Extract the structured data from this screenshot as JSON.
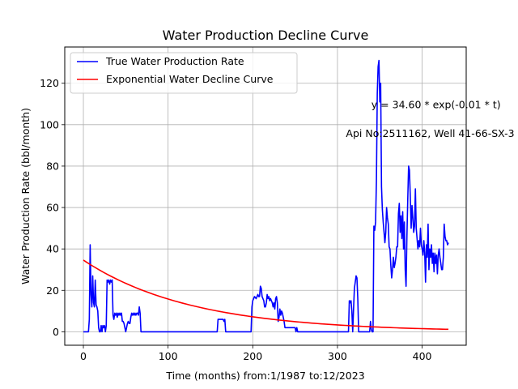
{
  "chart_data": {
    "type": "line",
    "title": "Water Production Decline Curve",
    "xlabel": "Time (months) from:1/1987 to:12/2023",
    "ylabel": "Water Production Rate (bbl/month)",
    "xlim": [
      -22,
      452
    ],
    "ylim": [
      -6.5,
      137.5
    ],
    "xticks": [
      0,
      100,
      200,
      300,
      400
    ],
    "yticks": [
      0,
      20,
      40,
      60,
      80,
      100,
      120
    ],
    "grid": true,
    "legend_position": "top-left",
    "annotations": [
      {
        "text": "y = 34.60 * exp(-0.01 * t)",
        "x": 340,
        "y": 108
      },
      {
        "text": "Api No:2511162, Well 41-66-SX-3",
        "x": 310,
        "y": 94
      }
    ],
    "series": [
      {
        "name": "True Water Production Rate",
        "color": "#0000ff",
        "kind": "polyline",
        "points": [
          [
            0,
            0
          ],
          [
            6,
            0
          ],
          [
            7,
            6
          ],
          [
            8,
            42
          ],
          [
            9,
            18
          ],
          [
            10,
            12
          ],
          [
            11,
            27
          ],
          [
            12,
            14
          ],
          [
            13,
            12
          ],
          [
            14,
            25
          ],
          [
            15,
            13
          ],
          [
            16,
            12
          ],
          [
            17,
            10
          ],
          [
            18,
            2
          ],
          [
            19,
            0
          ],
          [
            20,
            0
          ],
          [
            21,
            3
          ],
          [
            22,
            0
          ],
          [
            23,
            3
          ],
          [
            24,
            2
          ],
          [
            25,
            3
          ],
          [
            26,
            0
          ],
          [
            27,
            3
          ],
          [
            28,
            25
          ],
          [
            29,
            24
          ],
          [
            30,
            25
          ],
          [
            31,
            23
          ],
          [
            32,
            25
          ],
          [
            33,
            24
          ],
          [
            34,
            25
          ],
          [
            35,
            8
          ],
          [
            36,
            6
          ],
          [
            37,
            9
          ],
          [
            38,
            8
          ],
          [
            39,
            9
          ],
          [
            40,
            7
          ],
          [
            41,
            9
          ],
          [
            42,
            8
          ],
          [
            43,
            9
          ],
          [
            44,
            8
          ],
          [
            45,
            9
          ],
          [
            46,
            5
          ],
          [
            47,
            5
          ],
          [
            48,
            4
          ],
          [
            49,
            2
          ],
          [
            50,
            0
          ],
          [
            51,
            2
          ],
          [
            52,
            4
          ],
          [
            53,
            5
          ],
          [
            54,
            4
          ],
          [
            55,
            4
          ],
          [
            56,
            7
          ],
          [
            57,
            9
          ],
          [
            58,
            8
          ],
          [
            59,
            9
          ],
          [
            60,
            8
          ],
          [
            61,
            9
          ],
          [
            62,
            8
          ],
          [
            63,
            9
          ],
          [
            64,
            9
          ],
          [
            65,
            8
          ],
          [
            66,
            12
          ],
          [
            67,
            9
          ],
          [
            68,
            0
          ],
          [
            158,
            0
          ],
          [
            159,
            6
          ],
          [
            165,
            6
          ],
          [
            166,
            5
          ],
          [
            167,
            6
          ],
          [
            168,
            0
          ],
          [
            198,
            0
          ],
          [
            199,
            12
          ],
          [
            200,
            15
          ],
          [
            202,
            17
          ],
          [
            204,
            16
          ],
          [
            206,
            18
          ],
          [
            207,
            17
          ],
          [
            208,
            17
          ],
          [
            209,
            22
          ],
          [
            210,
            21
          ],
          [
            211,
            17
          ],
          [
            213,
            15
          ],
          [
            214,
            12
          ],
          [
            215,
            12
          ],
          [
            216,
            14
          ],
          [
            217,
            18
          ],
          [
            218,
            16
          ],
          [
            219,
            17
          ],
          [
            220,
            15
          ],
          [
            221,
            16
          ],
          [
            222,
            15
          ],
          [
            223,
            14
          ],
          [
            224,
            12
          ],
          [
            225,
            14
          ],
          [
            226,
            11
          ],
          [
            227,
            16
          ],
          [
            228,
            17
          ],
          [
            229,
            14
          ],
          [
            230,
            5
          ],
          [
            231,
            7
          ],
          [
            232,
            11
          ],
          [
            233,
            8
          ],
          [
            234,
            10
          ],
          [
            235,
            9
          ],
          [
            236,
            7
          ],
          [
            237,
            5
          ],
          [
            238,
            2
          ],
          [
            239,
            2
          ],
          [
            240,
            2
          ],
          [
            250,
            2
          ],
          [
            251,
            0
          ],
          [
            252,
            2
          ],
          [
            253,
            0
          ],
          [
            254,
            0
          ],
          [
            312,
            0
          ],
          [
            313,
            0
          ],
          [
            314,
            15
          ],
          [
            315,
            14
          ],
          [
            316,
            15
          ],
          [
            317,
            10
          ],
          [
            318,
            0
          ],
          [
            319,
            11
          ],
          [
            320,
            21
          ],
          [
            321,
            24
          ],
          [
            322,
            27
          ],
          [
            323,
            26
          ],
          [
            324,
            16
          ],
          [
            325,
            0
          ],
          [
            338,
            0
          ],
          [
            339,
            5
          ],
          [
            340,
            1
          ],
          [
            341,
            0
          ],
          [
            342,
            0
          ],
          [
            343,
            51
          ],
          [
            344,
            49
          ],
          [
            345,
            53
          ],
          [
            346,
            73
          ],
          [
            347,
            115
          ],
          [
            348,
            128
          ],
          [
            349,
            131
          ],
          [
            350,
            111
          ],
          [
            351,
            120
          ],
          [
            352,
            70
          ],
          [
            353,
            59
          ],
          [
            354,
            53
          ],
          [
            355,
            48
          ],
          [
            356,
            43
          ],
          [
            357,
            48
          ],
          [
            358,
            60
          ],
          [
            359,
            55
          ],
          [
            360,
            52
          ],
          [
            361,
            41
          ],
          [
            362,
            40
          ],
          [
            363,
            32
          ],
          [
            364,
            26
          ],
          [
            365,
            30
          ],
          [
            366,
            36
          ],
          [
            367,
            31
          ],
          [
            368,
            33
          ],
          [
            369,
            36
          ],
          [
            370,
            41
          ],
          [
            371,
            41
          ],
          [
            372,
            57
          ],
          [
            373,
            62
          ],
          [
            374,
            48
          ],
          [
            375,
            56
          ],
          [
            376,
            45
          ],
          [
            377,
            58
          ],
          [
            378,
            40
          ],
          [
            379,
            53
          ],
          [
            380,
            30
          ],
          [
            381,
            22
          ],
          [
            382,
            46
          ],
          [
            383,
            64
          ],
          [
            384,
            80
          ],
          [
            385,
            78
          ],
          [
            386,
            65
          ],
          [
            387,
            50
          ],
          [
            388,
            61
          ],
          [
            389,
            55
          ],
          [
            390,
            48
          ],
          [
            391,
            51
          ],
          [
            392,
            69
          ],
          [
            393,
            50
          ],
          [
            394,
            45
          ],
          [
            395,
            40
          ],
          [
            396,
            44
          ],
          [
            397,
            41
          ],
          [
            398,
            50
          ],
          [
            399,
            42
          ],
          [
            400,
            40
          ],
          [
            401,
            37
          ],
          [
            402,
            44
          ],
          [
            403,
            38
          ],
          [
            404,
            24
          ],
          [
            405,
            42
          ],
          [
            406,
            36
          ],
          [
            407,
            52
          ],
          [
            408,
            30
          ],
          [
            409,
            40
          ],
          [
            410,
            36
          ],
          [
            411,
            42
          ],
          [
            412,
            33
          ],
          [
            413,
            38
          ],
          [
            414,
            29
          ],
          [
            415,
            38
          ],
          [
            416,
            33
          ],
          [
            417,
            37
          ],
          [
            418,
            28
          ],
          [
            419,
            37
          ],
          [
            420,
            40
          ],
          [
            421,
            36
          ],
          [
            422,
            33
          ],
          [
            423,
            30
          ],
          [
            424,
            30
          ],
          [
            425,
            36
          ],
          [
            426,
            52
          ],
          [
            427,
            46
          ],
          [
            428,
            44
          ],
          [
            429,
            44
          ],
          [
            430,
            42
          ],
          [
            431,
            43
          ]
        ]
      },
      {
        "name": "Exponential Water Decline Curve",
        "color": "#ff0000",
        "kind": "exponential",
        "a": 34.6,
        "b": -0.00783,
        "x_start": 0,
        "x_end": 431,
        "steps": 120
      }
    ]
  }
}
